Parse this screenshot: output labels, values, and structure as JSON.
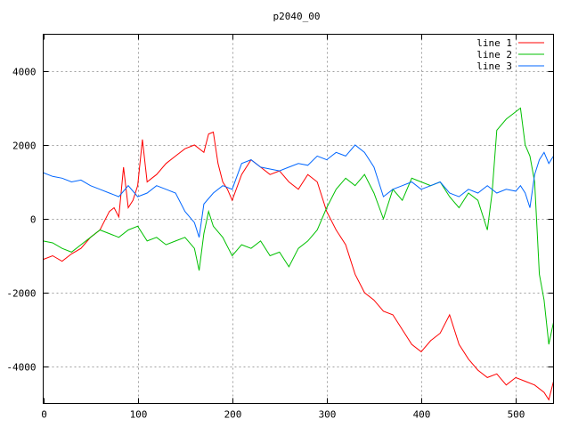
{
  "chart_data": {
    "type": "line",
    "title": "p2040_00",
    "xlabel": "",
    "ylabel": "",
    "xlim": [
      0,
      540
    ],
    "ylim": [
      -5000,
      5000
    ],
    "xticks": [
      0,
      100,
      200,
      300,
      400,
      500
    ],
    "yticks": [
      -4000,
      -2000,
      0,
      2000,
      4000
    ],
    "grid": true,
    "legend_position": "top-right",
    "series": [
      {
        "name": "line 1",
        "color": "#ff0000",
        "x": [
          0,
          10,
          20,
          30,
          40,
          50,
          60,
          70,
          75,
          80,
          85,
          90,
          95,
          100,
          105,
          110,
          115,
          120,
          130,
          140,
          150,
          160,
          170,
          175,
          180,
          185,
          190,
          195,
          200,
          210,
          220,
          230,
          240,
          250,
          260,
          270,
          280,
          290,
          300,
          310,
          320,
          330,
          340,
          350,
          360,
          370,
          380,
          390,
          400,
          410,
          420,
          430,
          435,
          440,
          450,
          460,
          470,
          480,
          490,
          500,
          510,
          520,
          530,
          535,
          540
        ],
        "values": [
          -1100,
          -1000,
          -1150,
          -950,
          -800,
          -500,
          -300,
          200,
          300,
          50,
          1400,
          300,
          500,
          900,
          2150,
          1000,
          1100,
          1200,
          1500,
          1700,
          1900,
          2000,
          1800,
          2300,
          2350,
          1500,
          1000,
          800,
          500,
          1200,
          1600,
          1400,
          1200,
          1300,
          1000,
          800,
          1200,
          1000,
          200,
          -300,
          -700,
          -1500,
          -2000,
          -2200,
          -2500,
          -2600,
          -3000,
          -3400,
          -3600,
          -3300,
          -3100,
          -2600,
          -3000,
          -3400,
          -3800,
          -4100,
          -4300,
          -4200,
          -4500,
          -4300,
          -4400,
          -4500,
          -4700,
          -4900,
          -4400
        ]
      },
      {
        "name": "line 2",
        "color": "#00c000",
        "x": [
          0,
          10,
          20,
          30,
          40,
          50,
          60,
          70,
          80,
          90,
          100,
          110,
          120,
          130,
          140,
          150,
          160,
          165,
          170,
          175,
          180,
          190,
          200,
          210,
          220,
          230,
          240,
          250,
          260,
          270,
          280,
          290,
          300,
          310,
          320,
          330,
          340,
          350,
          360,
          370,
          380,
          390,
          400,
          410,
          420,
          430,
          440,
          450,
          460,
          470,
          475,
          480,
          490,
          500,
          505,
          510,
          515,
          520,
          525,
          530,
          535,
          540
        ],
        "values": [
          -600,
          -650,
          -800,
          -900,
          -700,
          -500,
          -300,
          -400,
          -500,
          -300,
          -200,
          -600,
          -500,
          -700,
          -600,
          -500,
          -800,
          -1400,
          -400,
          200,
          -200,
          -500,
          -1000,
          -700,
          -800,
          -600,
          -1000,
          -900,
          -1300,
          -800,
          -600,
          -300,
          300,
          800,
          1100,
          900,
          1200,
          700,
          0,
          800,
          500,
          1100,
          1000,
          900,
          1000,
          600,
          300,
          700,
          500,
          -300,
          700,
          2400,
          2700,
          2900,
          3000,
          2000,
          1700,
          1000,
          -1500,
          -2200,
          -3400,
          -2800
        ]
      },
      {
        "name": "line 3",
        "color": "#0066ff",
        "x": [
          0,
          10,
          20,
          30,
          40,
          50,
          60,
          70,
          80,
          90,
          100,
          110,
          120,
          130,
          140,
          150,
          160,
          165,
          170,
          180,
          190,
          200,
          210,
          220,
          230,
          240,
          250,
          260,
          270,
          280,
          290,
          300,
          310,
          320,
          330,
          340,
          350,
          360,
          370,
          380,
          390,
          400,
          410,
          420,
          430,
          440,
          450,
          460,
          470,
          480,
          490,
          500,
          505,
          510,
          515,
          520,
          525,
          530,
          535,
          540
        ],
        "values": [
          1250,
          1150,
          1100,
          1000,
          1050,
          900,
          800,
          700,
          600,
          900,
          600,
          700,
          900,
          800,
          700,
          200,
          -100,
          -500,
          400,
          700,
          900,
          800,
          1500,
          1600,
          1400,
          1350,
          1300,
          1400,
          1500,
          1450,
          1700,
          1600,
          1800,
          1700,
          2000,
          1800,
          1400,
          600,
          800,
          900,
          1000,
          800,
          900,
          1000,
          700,
          600,
          800,
          700,
          900,
          700,
          800,
          750,
          900,
          700,
          300,
          1200,
          1600,
          1800,
          1500,
          1700
        ]
      }
    ]
  }
}
